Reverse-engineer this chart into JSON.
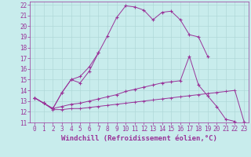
{
  "xlabel": "Windchill (Refroidissement éolien,°C)",
  "background_color": "#c8ecec",
  "grid_color": "#b0d8d8",
  "line_color": "#993399",
  "xlim": [
    -0.5,
    23.5
  ],
  "ylim": [
    11,
    22.3
  ],
  "xticks": [
    0,
    1,
    2,
    3,
    4,
    5,
    6,
    7,
    8,
    9,
    10,
    11,
    12,
    13,
    14,
    15,
    16,
    17,
    18,
    19,
    20,
    21,
    22,
    23
  ],
  "yticks": [
    11,
    12,
    13,
    14,
    15,
    16,
    17,
    18,
    19,
    20,
    21,
    22
  ],
  "line1_y": [
    13.3,
    12.8,
    12.3,
    13.8,
    15.0,
    14.7,
    15.8,
    17.5
  ],
  "line2_y": [
    13.3,
    12.8,
    12.3,
    13.8,
    15.0,
    15.3,
    16.2,
    17.5,
    19.1,
    20.8,
    21.9,
    21.8,
    21.5,
    20.6,
    21.3,
    21.4,
    20.6,
    19.2,
    19.0,
    17.2
  ],
  "line3_y": [
    13.3,
    12.8,
    12.3,
    12.5,
    12.7,
    12.8,
    13.0,
    13.2,
    13.4,
    13.6,
    13.9,
    14.1,
    14.3,
    14.5,
    14.7,
    14.8,
    14.9,
    17.2,
    14.5,
    13.5,
    12.5,
    11.3,
    11.1
  ],
  "line4_y": [
    13.3,
    12.8,
    12.2,
    12.2,
    12.3,
    12.3,
    12.4,
    12.5,
    12.6,
    12.7,
    12.8,
    12.9,
    13.0,
    13.1,
    13.2,
    13.3,
    13.4,
    13.5,
    13.6,
    13.7,
    13.8,
    13.9,
    14.0,
    11.1
  ],
  "font_color": "#993399",
  "tick_fontsize": 5.5,
  "label_fontsize": 6.5
}
